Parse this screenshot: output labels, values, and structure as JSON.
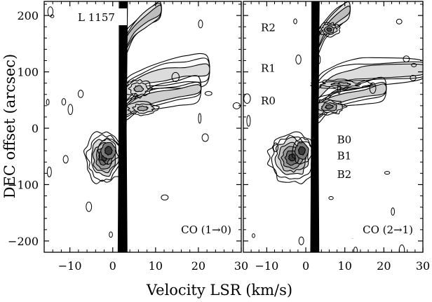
{
  "figure": {
    "xlabel": "Velocity LSR (km/s)",
    "ylabel": "DEC offset  (arcsec)"
  },
  "chart_data": [
    {
      "type": "contour",
      "panel": "left",
      "title": "L 1157",
      "subtitle": "CO (1→0)",
      "xlim": [
        -16,
        30
      ],
      "ylim": [
        -220,
        225
      ],
      "xticks": [
        -10,
        0,
        10,
        20,
        30
      ],
      "xtick_labels": [
        "−10",
        "0",
        "10",
        "20",
        "30"
      ],
      "yticks": [
        -200,
        -100,
        0,
        100,
        200
      ],
      "ytick_labels": [
        "−200",
        "−100",
        "0",
        "100",
        "200"
      ],
      "annotations": [],
      "components": [
        {
          "name": "ambient cloud ridge",
          "v": [
            1.5,
            3.5
          ],
          "dec": [
            -220,
            225
          ]
        },
        {
          "name": "blue-shifted lobe",
          "v": [
            -7,
            1.5
          ],
          "dec": [
            -100,
            0
          ]
        },
        {
          "name": "red-shifted lobe",
          "v": [
            3,
            22
          ],
          "dec": [
            20,
            200
          ]
        }
      ]
    },
    {
      "type": "contour",
      "panel": "right",
      "title": "",
      "subtitle": "CO (2→1)",
      "xlim": [
        -16,
        30
      ],
      "ylim": [
        -220,
        225
      ],
      "xticks": [
        -10,
        0,
        10,
        20,
        30
      ],
      "xtick_labels": [
        "−10",
        "0",
        "10",
        "20",
        "30"
      ],
      "yticks": [
        -200,
        -100,
        0,
        100,
        200
      ],
      "ytick_labels": [],
      "annotations": [
        {
          "text": "R2",
          "v": -11.5,
          "dec": 172
        },
        {
          "text": "R1",
          "v": -11.5,
          "dec": 100
        },
        {
          "text": "R0",
          "v": -11.5,
          "dec": 42
        },
        {
          "text": "B0",
          "v": 8,
          "dec": -27
        },
        {
          "text": "B1",
          "v": 8,
          "dec": -55
        },
        {
          "text": "B2",
          "v": 8,
          "dec": -88
        }
      ],
      "components": [
        {
          "name": "ambient cloud ridge",
          "v": [
            1.5,
            3.5
          ],
          "dec": [
            -220,
            225
          ]
        },
        {
          "name": "blue-shifted lobe",
          "v": [
            -10,
            1.5
          ],
          "dec": [
            -100,
            0
          ]
        },
        {
          "name": "red-shifted lobe",
          "v": [
            3,
            30
          ],
          "dec": [
            20,
            200
          ]
        }
      ]
    }
  ]
}
